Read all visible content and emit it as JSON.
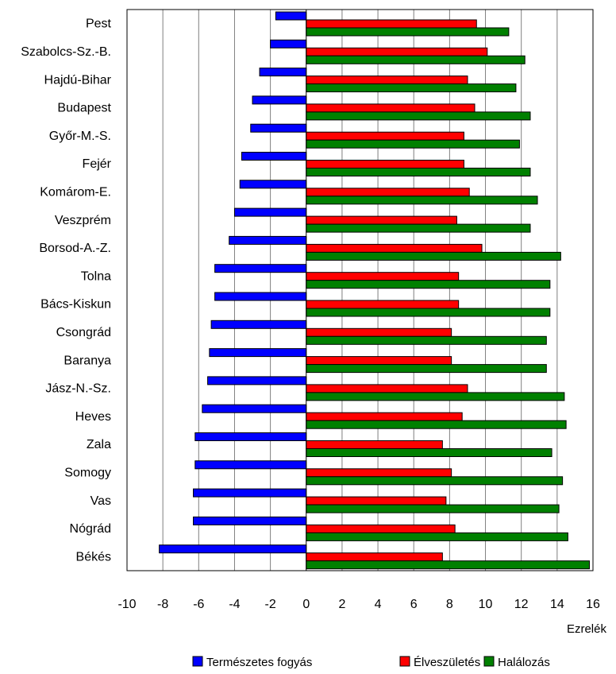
{
  "chart_data": {
    "type": "bar",
    "orientation": "horizontal",
    "categories": [
      "Pest",
      "Szabolcs-Sz.-B.",
      "Hajdú-Bihar",
      "Budapest",
      "Győr-M.-S.",
      "Fejér",
      "Komárom-E.",
      "Veszprém",
      "Borsod-A.-Z.",
      "Tolna",
      "Bács-Kiskun",
      "Csongrád",
      "Baranya",
      "Jász-N.-Sz.",
      "Heves",
      "Zala",
      "Somogy",
      "Vas",
      "Nógrád",
      "Békés"
    ],
    "series": [
      {
        "name": "Természetes fogyás",
        "color": "#0000ff",
        "values": [
          -1.7,
          -2.0,
          -2.6,
          -3.0,
          -3.1,
          -3.6,
          -3.7,
          -4.0,
          -4.3,
          -5.1,
          -5.1,
          -5.3,
          -5.4,
          -5.5,
          -5.8,
          -6.2,
          -6.2,
          -6.3,
          -6.3,
          -8.2
        ]
      },
      {
        "name": "Élveszületés",
        "color": "#ff0000",
        "values": [
          9.5,
          10.1,
          9.0,
          9.4,
          8.8,
          8.8,
          9.1,
          8.4,
          9.8,
          8.5,
          8.5,
          8.1,
          8.1,
          9.0,
          8.7,
          7.6,
          8.1,
          7.8,
          8.3,
          7.6
        ]
      },
      {
        "name": "Halálozás",
        "color": "#008000",
        "values": [
          11.3,
          12.2,
          11.7,
          12.5,
          11.9,
          12.5,
          12.9,
          12.5,
          14.2,
          13.6,
          13.6,
          13.4,
          13.4,
          14.4,
          14.5,
          13.7,
          14.3,
          14.1,
          14.6,
          15.8
        ]
      }
    ],
    "x_ticks": [
      -10,
      -8,
      -6,
      -4,
      -2,
      0,
      2,
      4,
      6,
      8,
      10,
      12,
      14,
      16
    ],
    "xlim": [
      -10,
      16
    ],
    "xlabel": "Ezrelék",
    "grid": "vertical",
    "legend_position": "bottom"
  }
}
